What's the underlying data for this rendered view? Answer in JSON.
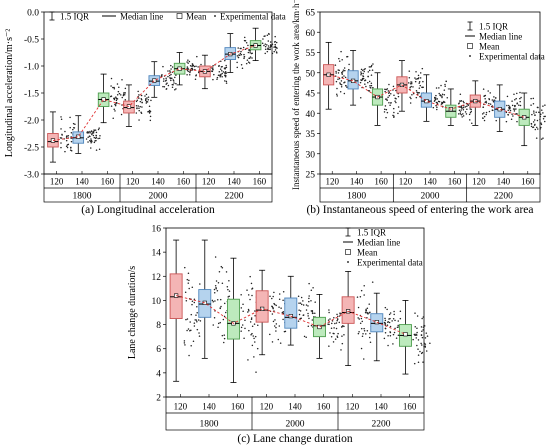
{
  "chart_data": [
    {
      "type": "box",
      "caption": "(a) Longitudinal acceleration",
      "ylabel": "Longitudinal acceleration/m·s⁻²",
      "ylim": [
        -3.0,
        0.0
      ],
      "yticks": [
        0.0,
        -0.5,
        -1.0,
        -1.5,
        -2.0,
        -2.5,
        -3.0
      ],
      "legend": {
        "iqr": "1.5 IQR",
        "median": "Median line",
        "mean": "Mean",
        "experimental": "Experimental data"
      },
      "groups": [
        "1800",
        "2000",
        "2200"
      ],
      "subcategories": [
        "120",
        "140",
        "160"
      ],
      "colors": [
        "#f4b5b5",
        "#b5d3ee",
        "#bdeabd"
      ],
      "edge_colors": [
        "#cc5555",
        "#4f86bd",
        "#4e9e4e"
      ],
      "boxes": [
        {
          "group": "1800",
          "sub": "120",
          "whisker_low": -2.78,
          "q1": -2.5,
          "median": -2.4,
          "q3": -2.25,
          "whisker_high": -1.85,
          "mean": -2.38
        },
        {
          "group": "1800",
          "sub": "140",
          "whisker_low": -2.62,
          "q1": -2.43,
          "median": -2.33,
          "q3": -2.22,
          "whisker_high": -1.92,
          "mean": -2.31
        },
        {
          "group": "1800",
          "sub": "160",
          "whisker_low": -2.05,
          "q1": -1.75,
          "median": -1.62,
          "q3": -1.5,
          "whisker_high": -1.15,
          "mean": -1.62
        },
        {
          "group": "2000",
          "sub": "120",
          "whisker_low": -2.12,
          "q1": -1.87,
          "median": -1.77,
          "q3": -1.65,
          "whisker_high": -1.35,
          "mean": -1.75
        },
        {
          "group": "2000",
          "sub": "140",
          "whisker_low": -1.58,
          "q1": -1.36,
          "median": -1.28,
          "q3": -1.18,
          "whisker_high": -0.92,
          "mean": -1.27
        },
        {
          "group": "2000",
          "sub": "160",
          "whisker_low": -1.35,
          "q1": -1.15,
          "median": -1.05,
          "q3": -0.95,
          "whisker_high": -0.75,
          "mean": -1.05
        },
        {
          "group": "2200",
          "sub": "120",
          "whisker_low": -1.42,
          "q1": -1.2,
          "median": -1.1,
          "q3": -1.0,
          "whisker_high": -0.8,
          "mean": -1.1
        },
        {
          "group": "2200",
          "sub": "140",
          "whisker_low": -1.12,
          "q1": -0.88,
          "median": -0.78,
          "q3": -0.66,
          "whisker_high": -0.4,
          "mean": -0.78
        },
        {
          "group": "2200",
          "sub": "160",
          "whisker_low": -0.9,
          "q1": -0.7,
          "median": -0.62,
          "q3": -0.53,
          "whisker_high": -0.3,
          "mean": -0.62
        }
      ]
    },
    {
      "type": "box",
      "caption": "(b) Instantaneous speed of entering the work area",
      "ylabel": "Instantaneous speed of entering the work area/km·h⁻¹",
      "ylim": [
        25,
        65
      ],
      "yticks": [
        25,
        30,
        35,
        40,
        45,
        50,
        55,
        60,
        65
      ],
      "legend": {
        "iqr": "1.5 IQR",
        "median": "Median line",
        "mean": "Mean",
        "experimental": "Experimental data"
      },
      "groups": [
        "1800",
        "2000",
        "2200"
      ],
      "subcategories": [
        "120",
        "140",
        "160"
      ],
      "colors": [
        "#f4b5b5",
        "#b5d3ee",
        "#bdeabd"
      ],
      "edge_colors": [
        "#cc5555",
        "#4f86bd",
        "#4e9e4e"
      ],
      "boxes": [
        {
          "group": "1800",
          "sub": "120",
          "whisker_low": 41,
          "q1": 47,
          "median": 49.5,
          "q3": 52,
          "whisker_high": 57.5,
          "mean": 49.5
        },
        {
          "group": "1800",
          "sub": "140",
          "whisker_low": 42,
          "q1": 46,
          "median": 48,
          "q3": 50.5,
          "whisker_high": 55.5,
          "mean": 48
        },
        {
          "group": "1800",
          "sub": "160",
          "whisker_low": 37,
          "q1": 42,
          "median": 44,
          "q3": 46,
          "whisker_high": 50,
          "mean": 44
        },
        {
          "group": "2000",
          "sub": "120",
          "whisker_low": 40.5,
          "q1": 45,
          "median": 47,
          "q3": 49,
          "whisker_high": 53,
          "mean": 47
        },
        {
          "group": "2000",
          "sub": "140",
          "whisker_low": 38,
          "q1": 41.5,
          "median": 43,
          "q3": 45,
          "whisker_high": 49.5,
          "mean": 43
        },
        {
          "group": "2000",
          "sub": "160",
          "whisker_low": 37,
          "q1": 39,
          "median": 40.5,
          "q3": 42,
          "whisker_high": 46,
          "mean": 41
        },
        {
          "group": "2200",
          "sub": "120",
          "whisker_low": 37,
          "q1": 41.5,
          "median": 43,
          "q3": 44.5,
          "whisker_high": 48,
          "mean": 43
        },
        {
          "group": "2200",
          "sub": "140",
          "whisker_low": 35.5,
          "q1": 39,
          "median": 41,
          "q3": 43,
          "whisker_high": 47,
          "mean": 41
        },
        {
          "group": "2200",
          "sub": "160",
          "whisker_low": 32,
          "q1": 37,
          "median": 39,
          "q3": 41,
          "whisker_high": 45,
          "mean": 39
        }
      ]
    },
    {
      "type": "box",
      "caption": "(c) Lane change duration",
      "ylabel": "Lane change duration/s",
      "ylim": [
        2,
        16
      ],
      "yticks": [
        2,
        4,
        6,
        8,
        10,
        12,
        14,
        16
      ],
      "legend": {
        "iqr": "1.5 IQR",
        "median": "Median line",
        "mean": "Mean",
        "experimental": "Experimental data"
      },
      "groups": [
        "1800",
        "2000",
        "2200"
      ],
      "subcategories": [
        "120",
        "140",
        "160"
      ],
      "colors": [
        "#f4b5b5",
        "#b5d3ee",
        "#bdeabd"
      ],
      "edge_colors": [
        "#cc5555",
        "#4f86bd",
        "#4e9e4e"
      ],
      "boxes": [
        {
          "group": "1800",
          "sub": "120",
          "whisker_low": 3.3,
          "q1": 8.5,
          "median": 10.3,
          "q3": 12.2,
          "whisker_high": 15.0,
          "mean": 10.4
        },
        {
          "group": "1800",
          "sub": "140",
          "whisker_low": 5.2,
          "q1": 8.6,
          "median": 9.7,
          "q3": 10.9,
          "whisker_high": 15.0,
          "mean": 9.8
        },
        {
          "group": "1800",
          "sub": "160",
          "whisker_low": 3.2,
          "q1": 6.8,
          "median": 8.1,
          "q3": 10.1,
          "whisker_high": 13.5,
          "mean": 8.1
        },
        {
          "group": "2000",
          "sub": "120",
          "whisker_low": 5.5,
          "q1": 8.2,
          "median": 9.2,
          "q3": 10.8,
          "whisker_high": 12.5,
          "mean": 9.3
        },
        {
          "group": "2000",
          "sub": "140",
          "whisker_low": 6.3,
          "q1": 7.7,
          "median": 8.6,
          "q3": 10.2,
          "whisker_high": 12.0,
          "mean": 8.7
        },
        {
          "group": "2000",
          "sub": "160",
          "whisker_low": 5.2,
          "q1": 7.0,
          "median": 7.9,
          "q3": 8.6,
          "whisker_high": 10.5,
          "mean": 7.8
        },
        {
          "group": "2200",
          "sub": "120",
          "whisker_low": 4.6,
          "q1": 8.1,
          "median": 9.0,
          "q3": 10.3,
          "whisker_high": 12.4,
          "mean": 9.1
        },
        {
          "group": "2200",
          "sub": "140",
          "whisker_low": 5.0,
          "q1": 7.4,
          "median": 8.1,
          "q3": 8.9,
          "whisker_high": 10.6,
          "mean": 8.2
        },
        {
          "group": "2200",
          "sub": "160",
          "whisker_low": 3.9,
          "q1": 6.2,
          "median": 7.1,
          "q3": 8.0,
          "whisker_high": 10.0,
          "mean": 7.2
        }
      ]
    }
  ]
}
